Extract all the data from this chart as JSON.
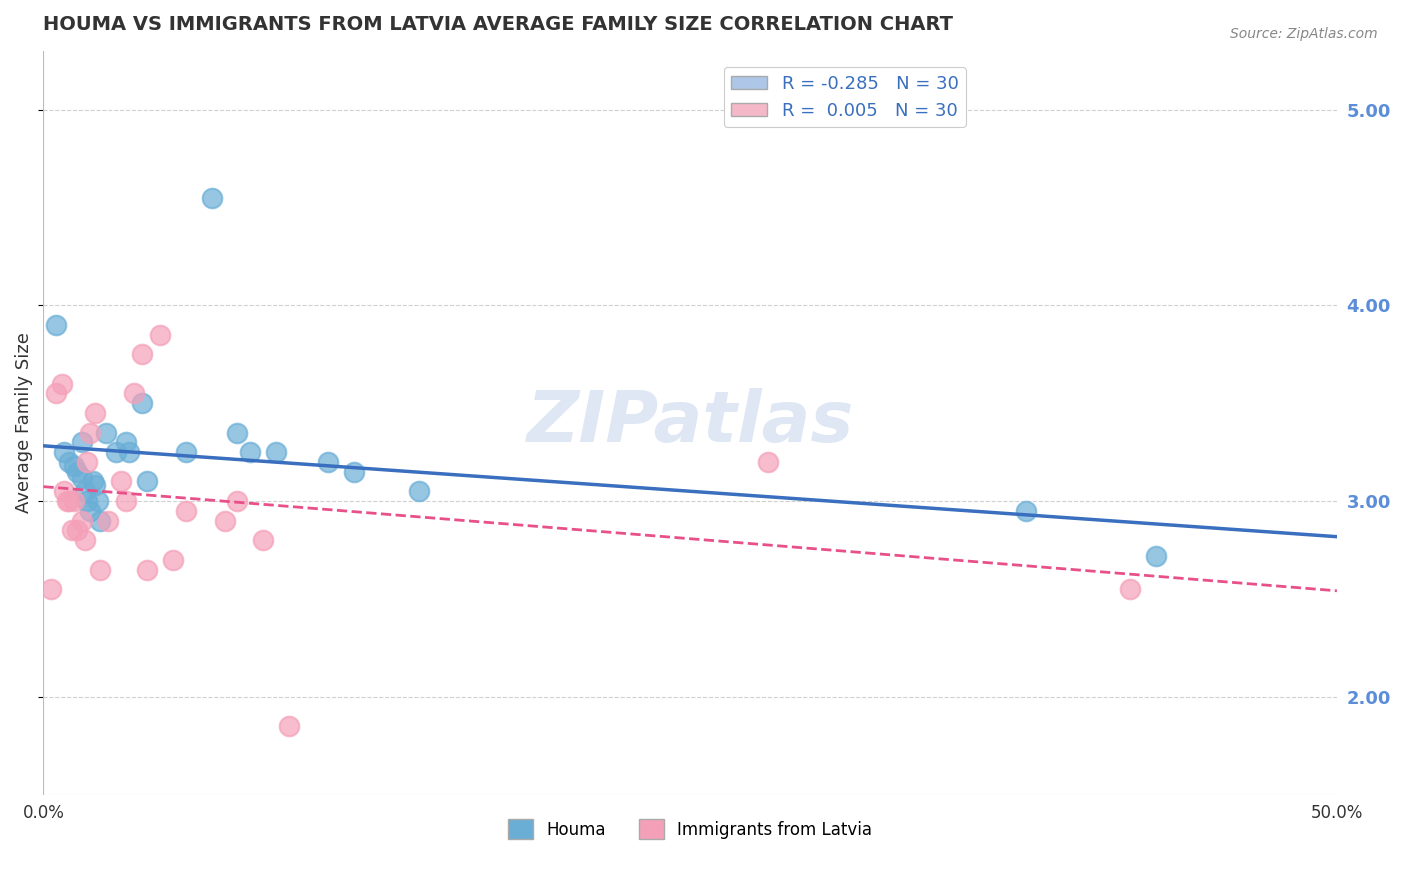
{
  "title": "HOUMA VS IMMIGRANTS FROM LATVIA AVERAGE FAMILY SIZE CORRELATION CHART",
  "source_text": "Source: ZipAtlas.com",
  "ylabel": "Average Family Size",
  "xlim": [
    0.0,
    0.5
  ],
  "ylim": [
    1.5,
    5.3
  ],
  "yticks_right": [
    2.0,
    3.0,
    4.0,
    5.0
  ],
  "xticks": [
    0.0,
    0.1,
    0.2,
    0.3,
    0.4,
    0.5
  ],
  "xtick_labels": [
    "0.0%",
    "",
    "",
    "",
    "",
    "50.0%"
  ],
  "legend_r_label1": "R = -0.285   N = 30",
  "legend_r_label2": "R =  0.005   N = 30",
  "legend_r_color1": "#aec6e8",
  "legend_r_color2": "#f4b8c8",
  "houma_color": "#6aaed6",
  "houma_line_color": "#3a6fbf",
  "latvia_color": "#f4a0b8",
  "latvia_line_color": "#e8508a",
  "houma_x": [
    0.005,
    0.008,
    0.01,
    0.012,
    0.013,
    0.015,
    0.015,
    0.016,
    0.017,
    0.018,
    0.019,
    0.02,
    0.021,
    0.022,
    0.024,
    0.028,
    0.032,
    0.033,
    0.038,
    0.04,
    0.055,
    0.065,
    0.075,
    0.08,
    0.09,
    0.11,
    0.12,
    0.145,
    0.38,
    0.43
  ],
  "houma_y": [
    3.9,
    3.25,
    3.2,
    3.18,
    3.15,
    3.3,
    3.12,
    3.05,
    3.0,
    2.95,
    3.1,
    3.08,
    3.0,
    2.9,
    3.35,
    3.25,
    3.3,
    3.25,
    3.5,
    3.1,
    3.25,
    4.55,
    3.35,
    3.25,
    3.25,
    3.2,
    3.15,
    3.05,
    2.95,
    2.72
  ],
  "latvia_x": [
    0.003,
    0.005,
    0.007,
    0.008,
    0.009,
    0.01,
    0.011,
    0.012,
    0.013,
    0.015,
    0.016,
    0.017,
    0.018,
    0.02,
    0.022,
    0.025,
    0.03,
    0.032,
    0.035,
    0.038,
    0.04,
    0.045,
    0.05,
    0.055,
    0.07,
    0.075,
    0.085,
    0.095,
    0.28,
    0.42
  ],
  "latvia_y": [
    2.55,
    3.55,
    3.6,
    3.05,
    3.0,
    3.0,
    2.85,
    3.0,
    2.85,
    2.9,
    2.8,
    3.2,
    3.35,
    3.45,
    2.65,
    2.9,
    3.1,
    3.0,
    3.55,
    3.75,
    2.65,
    3.85,
    2.7,
    2.95,
    2.9,
    3.0,
    2.8,
    1.85,
    3.2,
    2.55
  ],
  "watermark": "ZIPatlas",
  "background_color": "#ffffff",
  "grid_color": "#d0d0d0"
}
